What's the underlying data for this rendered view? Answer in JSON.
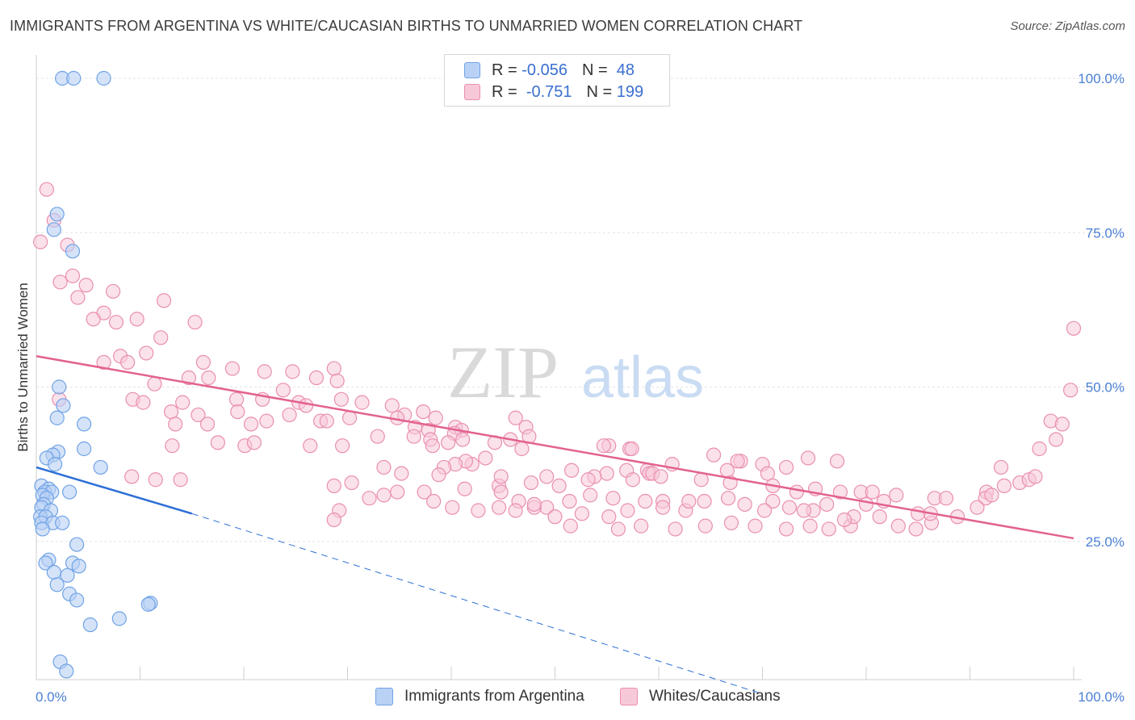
{
  "title": "IMMIGRANTS FROM ARGENTINA VS WHITE/CAUCASIAN BIRTHS TO UNMARRIED WOMEN CORRELATION CHART",
  "source": "Source: ZipAtlas.com",
  "watermark": {
    "zip": "ZIP",
    "atlas": "atlas"
  },
  "legend": {
    "series1": {
      "r_label": "R =",
      "r_value": "-0.056",
      "n_label": "N =",
      "n_value": "48"
    },
    "series2": {
      "r_label": "R =",
      "r_value": "-0.751",
      "n_label": "N =",
      "n_value": "199"
    }
  },
  "colors": {
    "blue": "#6fa3e6",
    "blue_fill": "#b9d1f5",
    "blue_line": "#2d6fd6",
    "pink": "#e98fb0",
    "pink_fill": "#f7c9d8",
    "pink_line": "#e2628f",
    "axis_text": "#4a7fd4"
  },
  "chart_data": {
    "type": "scatter",
    "title": "IMMIGRANTS FROM ARGENTINA VS WHITE/CAUCASIAN BIRTHS TO UNMARRIED WOMEN CORRELATION CHART",
    "xlabel": "",
    "ylabel": "Births to Unmarried Women",
    "xlim": [
      0,
      100
    ],
    "ylim": [
      0,
      102
    ],
    "x_tick_labels": [
      "0.0%",
      "100.0%"
    ],
    "y_tick_labels": [
      {
        "v": 100,
        "label": "100.0%"
      },
      {
        "v": 75,
        "label": "75.0%"
      },
      {
        "v": 50,
        "label": "50.0%"
      },
      {
        "v": 25,
        "label": "25.0%"
      }
    ],
    "series": [
      {
        "name": "Immigrants from Argentina",
        "points": [
          [
            2.5,
            100
          ],
          [
            3.6,
            100
          ],
          [
            6.5,
            100
          ],
          [
            2.0,
            78
          ],
          [
            1.7,
            75.5
          ],
          [
            3.5,
            72
          ],
          [
            2.2,
            50
          ],
          [
            2.6,
            47
          ],
          [
            2.0,
            45
          ],
          [
            4.6,
            44
          ],
          [
            4.6,
            40
          ],
          [
            2.1,
            39.5
          ],
          [
            1.6,
            39
          ],
          [
            1.0,
            38.5
          ],
          [
            1.8,
            37.5
          ],
          [
            6.2,
            37
          ],
          [
            0.5,
            34
          ],
          [
            1.2,
            33.5
          ],
          [
            0.8,
            33
          ],
          [
            1.5,
            33
          ],
          [
            3.2,
            33
          ],
          [
            0.6,
            32.5
          ],
          [
            1.0,
            32
          ],
          [
            0.7,
            31
          ],
          [
            0.5,
            30.5
          ],
          [
            1.4,
            30
          ],
          [
            0.4,
            29
          ],
          [
            0.9,
            29
          ],
          [
            0.5,
            28
          ],
          [
            1.6,
            28
          ],
          [
            2.5,
            28
          ],
          [
            0.6,
            27
          ],
          [
            3.9,
            24.5
          ],
          [
            1.2,
            22
          ],
          [
            0.9,
            21.5
          ],
          [
            3.5,
            21.5
          ],
          [
            4.1,
            21
          ],
          [
            1.7,
            20
          ],
          [
            3.0,
            19.5
          ],
          [
            2.0,
            18
          ],
          [
            3.2,
            16.5
          ],
          [
            3.9,
            15.5
          ],
          [
            11.0,
            15
          ],
          [
            10.8,
            14.8
          ],
          [
            8.0,
            12.5
          ],
          [
            5.2,
            11.5
          ],
          [
            2.3,
            5.5
          ],
          [
            2.9,
            4
          ]
        ]
      },
      {
        "name": "Whites/Caucasians",
        "points": [
          [
            1.0,
            82
          ],
          [
            0.4,
            73.5
          ],
          [
            1.7,
            77
          ],
          [
            3.0,
            73
          ],
          [
            3.5,
            68
          ],
          [
            2.3,
            67
          ],
          [
            4.8,
            66.5
          ],
          [
            7.4,
            65.5
          ],
          [
            4.0,
            64.5
          ],
          [
            12.3,
            64
          ],
          [
            6.5,
            62
          ],
          [
            5.5,
            61
          ],
          [
            9.7,
            61
          ],
          [
            7.7,
            60.5
          ],
          [
            15.3,
            60.5
          ],
          [
            12.0,
            58
          ],
          [
            8.1,
            55
          ],
          [
            10.6,
            55.5
          ],
          [
            6.5,
            54
          ],
          [
            8.8,
            54
          ],
          [
            16.1,
            54
          ],
          [
            18.9,
            53
          ],
          [
            14.7,
            51.5
          ],
          [
            16.6,
            51.5
          ],
          [
            24.7,
            52.5
          ],
          [
            22.0,
            52.5
          ],
          [
            28.7,
            53
          ],
          [
            27.0,
            51.5
          ],
          [
            11.4,
            50.5
          ],
          [
            29.0,
            51
          ],
          [
            23.8,
            49.5
          ],
          [
            9.3,
            48
          ],
          [
            2.2,
            48
          ],
          [
            10.3,
            47.5
          ],
          [
            19.3,
            48
          ],
          [
            21.8,
            48
          ],
          [
            25.3,
            47.5
          ],
          [
            26.0,
            47
          ],
          [
            29.4,
            48
          ],
          [
            31.4,
            47.5
          ],
          [
            19.4,
            46
          ],
          [
            14.1,
            47.5
          ],
          [
            13.0,
            46
          ],
          [
            15.6,
            45.5
          ],
          [
            24.4,
            45.5
          ],
          [
            34.3,
            47
          ],
          [
            37.3,
            46
          ],
          [
            35.5,
            45.5
          ],
          [
            30.2,
            45
          ],
          [
            34.8,
            45
          ],
          [
            38.5,
            45
          ],
          [
            46.2,
            45
          ],
          [
            27.4,
            44.5
          ],
          [
            13.4,
            44
          ],
          [
            16.5,
            44
          ],
          [
            20.7,
            44
          ],
          [
            22.2,
            44.5
          ],
          [
            28.0,
            44.5
          ],
          [
            36.5,
            43.5
          ],
          [
            47.2,
            43.5
          ],
          [
            37.8,
            43
          ],
          [
            40.4,
            43.5
          ],
          [
            41.0,
            43
          ],
          [
            40.3,
            42.5
          ],
          [
            36.4,
            42
          ],
          [
            47.5,
            42
          ],
          [
            32.9,
            42
          ],
          [
            45.7,
            41.5
          ],
          [
            38.0,
            41.5
          ],
          [
            39.7,
            41
          ],
          [
            41.1,
            41.5
          ],
          [
            44.2,
            41
          ],
          [
            17.5,
            41
          ],
          [
            20.1,
            40.5
          ],
          [
            13.1,
            40.5
          ],
          [
            21.0,
            41
          ],
          [
            26.4,
            40.5
          ],
          [
            29.5,
            40.5
          ],
          [
            38.2,
            40.5
          ],
          [
            46.8,
            40
          ],
          [
            55.2,
            40.5
          ],
          [
            54.7,
            40.5
          ],
          [
            57.2,
            40
          ],
          [
            57.4,
            40
          ],
          [
            65.3,
            39
          ],
          [
            74.4,
            38.5
          ],
          [
            67.9,
            38
          ],
          [
            67.6,
            38
          ],
          [
            70.0,
            37.5
          ],
          [
            72.3,
            37
          ],
          [
            77.2,
            38
          ],
          [
            70.5,
            36
          ],
          [
            66.6,
            36.5
          ],
          [
            61.3,
            37.5
          ],
          [
            58.9,
            36.5
          ],
          [
            56.9,
            36.5
          ],
          [
            59.1,
            36
          ],
          [
            55.0,
            36
          ],
          [
            53.8,
            35.5
          ],
          [
            53.2,
            35
          ],
          [
            57.5,
            35
          ],
          [
            47.7,
            34.5
          ],
          [
            44.6,
            34
          ],
          [
            50.4,
            34
          ],
          [
            43.3,
            38.5
          ],
          [
            42.0,
            37.5
          ],
          [
            41.4,
            38
          ],
          [
            40.4,
            37.5
          ],
          [
            39.3,
            37
          ],
          [
            33.5,
            37
          ],
          [
            35.2,
            36
          ],
          [
            38.8,
            35.8
          ],
          [
            44.8,
            35.5
          ],
          [
            49.2,
            35.5
          ],
          [
            51.6,
            36.5
          ],
          [
            59.4,
            36
          ],
          [
            60.2,
            35.5
          ],
          [
            64.1,
            35
          ],
          [
            66.9,
            34.5
          ],
          [
            71.0,
            34
          ],
          [
            73.3,
            33
          ],
          [
            75.1,
            33.5
          ],
          [
            77.5,
            33
          ],
          [
            79.5,
            33
          ],
          [
            80.6,
            33
          ],
          [
            82.9,
            32.5
          ],
          [
            86.6,
            32
          ],
          [
            87.7,
            32
          ],
          [
            91.6,
            33
          ],
          [
            91.5,
            32
          ],
          [
            93.3,
            34
          ],
          [
            94.8,
            34.5
          ],
          [
            95.7,
            35
          ],
          [
            96.3,
            35.5
          ],
          [
            97.8,
            44.5
          ],
          [
            99.7,
            49.5
          ],
          [
            100.0,
            59.5
          ],
          [
            98.9,
            44
          ],
          [
            98.3,
            41.5
          ],
          [
            96.7,
            40
          ],
          [
            93.0,
            37
          ],
          [
            92.1,
            32.5
          ],
          [
            81.7,
            31.5
          ],
          [
            80.0,
            31
          ],
          [
            76.2,
            31
          ],
          [
            74.9,
            30
          ],
          [
            68.3,
            31
          ],
          [
            66.7,
            32
          ],
          [
            64.4,
            31.5
          ],
          [
            62.6,
            30
          ],
          [
            60.4,
            31.5
          ],
          [
            58.7,
            31.5
          ],
          [
            57.0,
            30
          ],
          [
            55.6,
            32
          ],
          [
            53.4,
            32.5
          ],
          [
            51.4,
            31.5
          ],
          [
            49.2,
            30.5
          ],
          [
            48.0,
            30.5
          ],
          [
            46.5,
            31.5
          ],
          [
            44.8,
            33
          ],
          [
            41.3,
            33.5
          ],
          [
            37.4,
            33
          ],
          [
            34.8,
            33
          ],
          [
            33.5,
            32.5
          ],
          [
            32.1,
            32
          ],
          [
            30.4,
            34.5
          ],
          [
            28.7,
            34
          ],
          [
            51.5,
            27.5
          ],
          [
            56.1,
            27
          ],
          [
            58.3,
            27.5
          ],
          [
            61.6,
            27
          ],
          [
            64.5,
            27.5
          ],
          [
            67.0,
            28
          ],
          [
            69.3,
            27.5
          ],
          [
            72.3,
            27
          ],
          [
            74.6,
            27.5
          ],
          [
            76.4,
            27
          ],
          [
            78.5,
            27.5
          ],
          [
            83.1,
            27.5
          ],
          [
            84.8,
            27
          ],
          [
            86.3,
            28
          ],
          [
            88.8,
            29
          ],
          [
            90.7,
            30.5
          ],
          [
            86.2,
            29.5
          ],
          [
            85.0,
            29.5
          ],
          [
            81.3,
            29
          ],
          [
            78.8,
            29
          ],
          [
            77.9,
            28.5
          ],
          [
            74.0,
            30
          ],
          [
            72.6,
            30.5
          ],
          [
            71.0,
            31.5
          ],
          [
            70.2,
            30
          ],
          [
            62.9,
            31.5
          ],
          [
            60.4,
            30.5
          ],
          [
            55.2,
            29
          ],
          [
            52.6,
            29.5
          ],
          [
            50.0,
            29
          ],
          [
            48.0,
            31
          ],
          [
            46.2,
            30
          ],
          [
            44.6,
            30.5
          ],
          [
            42.6,
            30
          ],
          [
            40.1,
            30.5
          ],
          [
            38.3,
            31.5
          ],
          [
            29.2,
            30
          ],
          [
            28.7,
            28.5
          ],
          [
            13.9,
            35
          ],
          [
            11.5,
            35
          ],
          [
            9.2,
            35.5
          ]
        ]
      }
    ],
    "trendlines": [
      {
        "series": "Immigrants from Argentina",
        "solid": [
          [
            0,
            37
          ],
          [
            15,
            29.5
          ]
        ],
        "dashed": [
          [
            15,
            29.5
          ],
          [
            70,
            0.3
          ]
        ]
      },
      {
        "series": "Whites/Caucasians",
        "solid": [
          [
            0,
            55
          ],
          [
            100,
            25.5
          ]
        ]
      }
    ]
  },
  "bottom_legend": {
    "series1": "Immigrants from Argentina",
    "series2": "Whites/Caucasians"
  }
}
